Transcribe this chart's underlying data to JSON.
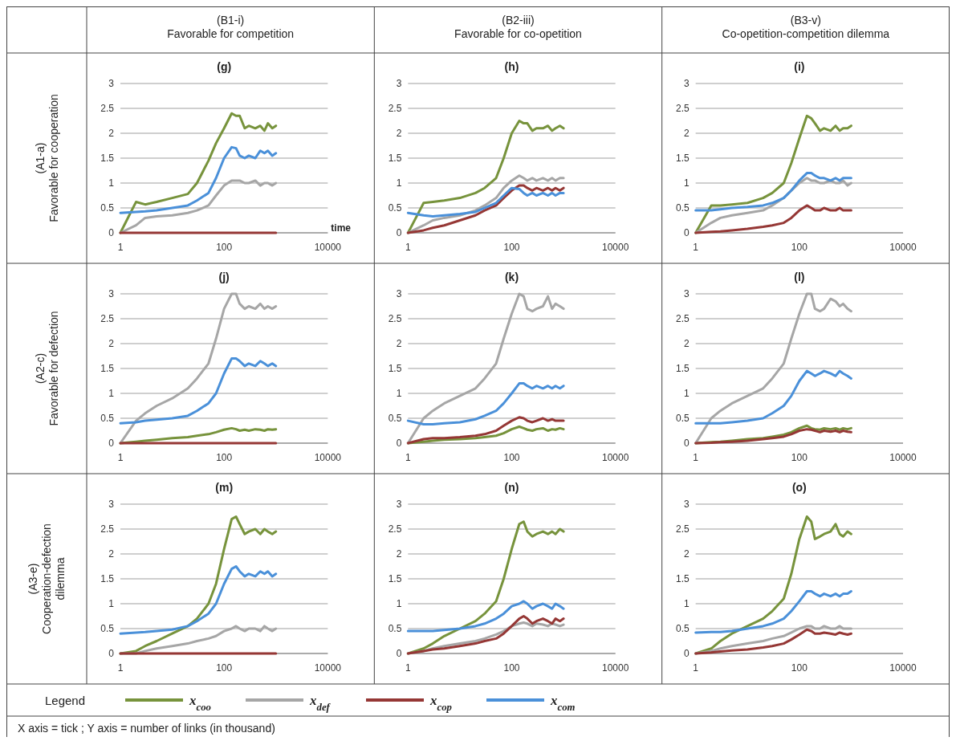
{
  "chart_data": [
    {
      "type": "line",
      "title": "(g)",
      "subtitle": "(B1-i)\nFavorable for competition",
      "ylabel": "(A1-a)\nFavorable for cooperation",
      "xlabel": "time",
      "legend": "bottom",
      "legend_title": "Legend",
      "annotations": [
        "X axis = tick ; Y axis = number of links (in thousand)"
      ],
      "log": "x",
      "grid": "y",
      "xlim": [
        1,
        10000
      ],
      "xticks": [
        1,
        100,
        10000
      ],
      "ylim": [
        0,
        3
      ],
      "yticks": [
        0,
        0.5,
        1,
        1.5,
        2,
        2.5,
        3
      ],
      "x": [
        1,
        2,
        3,
        5,
        10,
        20,
        30,
        50,
        70,
        100,
        140,
        170,
        200,
        250,
        300,
        400,
        500,
        600,
        700,
        850,
        1000
      ],
      "series": [
        {
          "name": "x$_{coo}$",
          "color": "#77933c",
          "values": [
            0,
            0.62,
            0.57,
            0.62,
            0.7,
            0.78,
            1.0,
            1.45,
            1.8,
            2.1,
            2.4,
            2.35,
            2.35,
            2.1,
            2.15,
            2.1,
            2.15,
            2.05,
            2.2,
            2.1,
            2.15
          ]
        },
        {
          "name": "x$_{def}$",
          "color": "#a6a6a6",
          "values": [
            0,
            0.15,
            0.3,
            0.33,
            0.35,
            0.4,
            0.45,
            0.55,
            0.75,
            0.95,
            1.05,
            1.05,
            1.05,
            1.0,
            1.0,
            1.05,
            0.95,
            1.0,
            1.0,
            0.95,
            1.0
          ]
        },
        {
          "name": "x$_{cop}$",
          "color": "#953735",
          "values": [
            0,
            0,
            0,
            0,
            0,
            0,
            0,
            0,
            0,
            0,
            0,
            0,
            0,
            0,
            0,
            0,
            0,
            0,
            0,
            0,
            0
          ]
        },
        {
          "name": "x$_{com}$",
          "color": "#4a90d9",
          "values": [
            0.4,
            0.42,
            0.43,
            0.45,
            0.5,
            0.55,
            0.65,
            0.8,
            1.1,
            1.5,
            1.72,
            1.7,
            1.55,
            1.5,
            1.55,
            1.5,
            1.65,
            1.6,
            1.65,
            1.55,
            1.6
          ]
        }
      ]
    },
    {
      "type": "line",
      "title": "(h)",
      "subtitle": "(B2-iii)\nFavorable for co-opetition",
      "log": "x",
      "grid": "y",
      "xlim": [
        1,
        10000
      ],
      "xticks": [
        1,
        100,
        10000
      ],
      "ylim": [
        0,
        3
      ],
      "yticks": [
        0,
        0.5,
        1,
        1.5,
        2,
        2.5,
        3
      ],
      "x": [
        1,
        2,
        3,
        5,
        10,
        20,
        30,
        50,
        70,
        100,
        140,
        170,
        200,
        250,
        300,
        400,
        500,
        600,
        700,
        850,
        1000
      ],
      "series": [
        {
          "color": "#77933c",
          "values": [
            0,
            0.6,
            0.62,
            0.65,
            0.7,
            0.8,
            0.9,
            1.1,
            1.5,
            2.0,
            2.25,
            2.2,
            2.2,
            2.05,
            2.1,
            2.1,
            2.15,
            2.05,
            2.1,
            2.15,
            2.1
          ]
        },
        {
          "color": "#a6a6a6",
          "values": [
            0,
            0.15,
            0.25,
            0.3,
            0.35,
            0.45,
            0.55,
            0.7,
            0.9,
            1.05,
            1.15,
            1.1,
            1.05,
            1.1,
            1.05,
            1.1,
            1.05,
            1.1,
            1.05,
            1.1,
            1.1
          ]
        },
        {
          "color": "#953735",
          "values": [
            0,
            0.05,
            0.1,
            0.15,
            0.25,
            0.35,
            0.45,
            0.55,
            0.7,
            0.85,
            0.95,
            0.95,
            0.9,
            0.85,
            0.9,
            0.85,
            0.9,
            0.85,
            0.9,
            0.85,
            0.9
          ]
        },
        {
          "color": "#4a90d9",
          "values": [
            0.4,
            0.35,
            0.33,
            0.35,
            0.38,
            0.42,
            0.5,
            0.6,
            0.75,
            0.9,
            0.88,
            0.8,
            0.75,
            0.8,
            0.75,
            0.8,
            0.75,
            0.8,
            0.75,
            0.8,
            0.8
          ]
        }
      ]
    },
    {
      "type": "line",
      "title": "(i)",
      "subtitle": "(B3-v)\nCo-opetition-competition dilemma",
      "log": "x",
      "grid": "y",
      "xlim": [
        1,
        10000
      ],
      "xticks": [
        1,
        100,
        10000
      ],
      "ylim": [
        0,
        3
      ],
      "yticks": [
        0,
        0.5,
        1,
        1.5,
        2,
        2.5,
        3
      ],
      "x": [
        1,
        2,
        3,
        5,
        10,
        20,
        30,
        50,
        70,
        100,
        140,
        170,
        200,
        250,
        300,
        400,
        500,
        600,
        700,
        850,
        1000
      ],
      "series": [
        {
          "color": "#77933c",
          "values": [
            0,
            0.55,
            0.55,
            0.57,
            0.6,
            0.7,
            0.8,
            1.0,
            1.4,
            1.9,
            2.35,
            2.3,
            2.2,
            2.05,
            2.1,
            2.05,
            2.15,
            2.05,
            2.1,
            2.1,
            2.15
          ]
        },
        {
          "color": "#a6a6a6",
          "values": [
            0,
            0.2,
            0.3,
            0.35,
            0.4,
            0.45,
            0.55,
            0.7,
            0.85,
            1.0,
            1.1,
            1.05,
            1.05,
            1.0,
            1.0,
            1.05,
            1.0,
            1.0,
            1.05,
            0.95,
            1.0
          ]
        },
        {
          "color": "#953735",
          "values": [
            0,
            0.02,
            0.03,
            0.05,
            0.08,
            0.12,
            0.15,
            0.2,
            0.3,
            0.45,
            0.55,
            0.5,
            0.45,
            0.45,
            0.5,
            0.45,
            0.45,
            0.5,
            0.45,
            0.45,
            0.45
          ]
        },
        {
          "color": "#4a90d9",
          "values": [
            0.45,
            0.45,
            0.47,
            0.5,
            0.52,
            0.55,
            0.6,
            0.7,
            0.85,
            1.05,
            1.2,
            1.2,
            1.15,
            1.1,
            1.1,
            1.05,
            1.1,
            1.05,
            1.1,
            1.1,
            1.1
          ]
        }
      ]
    },
    {
      "type": "line",
      "title": "(j)",
      "ylabel": "(A2-c)\nFavorable for defection",
      "log": "x",
      "grid": "y",
      "xlim": [
        1,
        10000
      ],
      "xticks": [
        1,
        100,
        10000
      ],
      "ylim": [
        0,
        3
      ],
      "yticks": [
        0,
        0.5,
        1,
        1.5,
        2,
        2.5,
        3
      ],
      "x": [
        1,
        2,
        3,
        5,
        10,
        20,
        30,
        50,
        70,
        100,
        140,
        170,
        200,
        250,
        300,
        400,
        500,
        600,
        700,
        850,
        1000
      ],
      "series": [
        {
          "color": "#77933c",
          "values": [
            0,
            0.03,
            0.05,
            0.07,
            0.1,
            0.12,
            0.15,
            0.18,
            0.22,
            0.27,
            0.3,
            0.28,
            0.25,
            0.27,
            0.25,
            0.28,
            0.27,
            0.25,
            0.28,
            0.27,
            0.28
          ]
        },
        {
          "color": "#a6a6a6",
          "values": [
            0,
            0.45,
            0.6,
            0.75,
            0.9,
            1.1,
            1.3,
            1.6,
            2.1,
            2.7,
            3.0,
            3.0,
            2.8,
            2.7,
            2.75,
            2.7,
            2.8,
            2.7,
            2.75,
            2.7,
            2.75
          ]
        },
        {
          "color": "#953735",
          "values": [
            0,
            0,
            0,
            0,
            0,
            0,
            0,
            0,
            0,
            0,
            0,
            0,
            0,
            0,
            0,
            0,
            0,
            0,
            0,
            0,
            0
          ]
        },
        {
          "color": "#4a90d9",
          "values": [
            0.4,
            0.42,
            0.45,
            0.47,
            0.5,
            0.55,
            0.65,
            0.8,
            1.0,
            1.4,
            1.7,
            1.7,
            1.65,
            1.55,
            1.6,
            1.55,
            1.65,
            1.6,
            1.55,
            1.6,
            1.55
          ]
        }
      ]
    },
    {
      "type": "line",
      "title": "(k)",
      "log": "x",
      "grid": "y",
      "xlim": [
        1,
        10000
      ],
      "xticks": [
        1,
        100,
        10000
      ],
      "ylim": [
        0,
        3
      ],
      "yticks": [
        0,
        0.5,
        1,
        1.5,
        2,
        2.5,
        3
      ],
      "x": [
        1,
        2,
        3,
        5,
        10,
        20,
        30,
        50,
        70,
        100,
        140,
        170,
        200,
        250,
        300,
        400,
        500,
        600,
        700,
        850,
        1000
      ],
      "series": [
        {
          "color": "#77933c",
          "values": [
            0,
            0.03,
            0.05,
            0.07,
            0.08,
            0.1,
            0.12,
            0.15,
            0.2,
            0.28,
            0.33,
            0.3,
            0.27,
            0.25,
            0.28,
            0.3,
            0.25,
            0.28,
            0.27,
            0.3,
            0.28
          ]
        },
        {
          "color": "#a6a6a6",
          "values": [
            0,
            0.5,
            0.65,
            0.8,
            0.95,
            1.1,
            1.3,
            1.6,
            2.1,
            2.6,
            3.0,
            2.95,
            2.7,
            2.65,
            2.7,
            2.75,
            2.95,
            2.7,
            2.8,
            2.75,
            2.7
          ]
        },
        {
          "color": "#953735",
          "values": [
            0,
            0.08,
            0.1,
            0.1,
            0.12,
            0.15,
            0.18,
            0.25,
            0.35,
            0.45,
            0.52,
            0.5,
            0.45,
            0.42,
            0.45,
            0.5,
            0.45,
            0.48,
            0.45,
            0.45,
            0.45
          ]
        },
        {
          "color": "#4a90d9",
          "values": [
            0.45,
            0.38,
            0.38,
            0.4,
            0.42,
            0.48,
            0.55,
            0.65,
            0.8,
            1.0,
            1.2,
            1.2,
            1.15,
            1.1,
            1.15,
            1.1,
            1.15,
            1.1,
            1.15,
            1.1,
            1.15
          ]
        }
      ]
    },
    {
      "type": "line",
      "title": "(l)",
      "log": "x",
      "grid": "y",
      "xlim": [
        1,
        10000
      ],
      "xticks": [
        1,
        100,
        10000
      ],
      "ylim": [
        0,
        3
      ],
      "yticks": [
        0,
        0.5,
        1,
        1.5,
        2,
        2.5,
        3
      ],
      "x": [
        1,
        2,
        3,
        5,
        10,
        20,
        30,
        50,
        70,
        100,
        140,
        170,
        200,
        250,
        300,
        400,
        500,
        600,
        700,
        850,
        1000
      ],
      "series": [
        {
          "color": "#77933c",
          "values": [
            0,
            0.02,
            0.03,
            0.05,
            0.08,
            0.1,
            0.13,
            0.17,
            0.22,
            0.3,
            0.35,
            0.3,
            0.28,
            0.27,
            0.3,
            0.28,
            0.3,
            0.27,
            0.3,
            0.28,
            0.3
          ]
        },
        {
          "color": "#a6a6a6",
          "values": [
            0,
            0.5,
            0.65,
            0.8,
            0.95,
            1.1,
            1.3,
            1.6,
            2.1,
            2.6,
            3.0,
            3.0,
            2.7,
            2.65,
            2.7,
            2.9,
            2.85,
            2.75,
            2.8,
            2.7,
            2.65
          ]
        },
        {
          "color": "#953735",
          "values": [
            0,
            0.01,
            0.02,
            0.03,
            0.05,
            0.08,
            0.1,
            0.13,
            0.18,
            0.25,
            0.28,
            0.27,
            0.25,
            0.22,
            0.25,
            0.23,
            0.25,
            0.22,
            0.25,
            0.23,
            0.22
          ]
        },
        {
          "color": "#4a90d9",
          "values": [
            0.4,
            0.4,
            0.4,
            0.42,
            0.45,
            0.5,
            0.6,
            0.75,
            0.95,
            1.25,
            1.45,
            1.4,
            1.35,
            1.4,
            1.45,
            1.4,
            1.35,
            1.45,
            1.4,
            1.35,
            1.3
          ]
        }
      ]
    },
    {
      "type": "line",
      "title": "(m)",
      "ylabel": "(A3-e)\nCooperation-defection\ndilemma",
      "log": "x",
      "grid": "y",
      "xlim": [
        1,
        10000
      ],
      "xticks": [
        1,
        100,
        10000
      ],
      "ylim": [
        0,
        3
      ],
      "yticks": [
        0,
        0.5,
        1,
        1.5,
        2,
        2.5,
        3
      ],
      "x": [
        1,
        2,
        3,
        5,
        10,
        20,
        30,
        50,
        70,
        100,
        140,
        170,
        200,
        250,
        300,
        400,
        500,
        600,
        700,
        850,
        1000
      ],
      "series": [
        {
          "color": "#77933c",
          "values": [
            0,
            0.05,
            0.15,
            0.25,
            0.4,
            0.55,
            0.7,
            1.0,
            1.4,
            2.1,
            2.7,
            2.75,
            2.6,
            2.4,
            2.45,
            2.5,
            2.4,
            2.5,
            2.45,
            2.4,
            2.45
          ]
        },
        {
          "color": "#a6a6a6",
          "values": [
            0,
            0,
            0.05,
            0.1,
            0.15,
            0.2,
            0.25,
            0.3,
            0.35,
            0.45,
            0.5,
            0.55,
            0.5,
            0.45,
            0.5,
            0.5,
            0.45,
            0.55,
            0.5,
            0.45,
            0.5
          ]
        },
        {
          "color": "#953735",
          "values": [
            0,
            0,
            0,
            0,
            0,
            0,
            0,
            0,
            0,
            0,
            0,
            0,
            0,
            0,
            0,
            0,
            0,
            0,
            0,
            0,
            0
          ]
        },
        {
          "color": "#4a90d9",
          "values": [
            0.4,
            0.42,
            0.43,
            0.45,
            0.48,
            0.55,
            0.65,
            0.8,
            1.0,
            1.4,
            1.7,
            1.75,
            1.65,
            1.55,
            1.6,
            1.55,
            1.65,
            1.6,
            1.65,
            1.55,
            1.6
          ]
        }
      ]
    },
    {
      "type": "line",
      "title": "(n)",
      "log": "x",
      "grid": "y",
      "xlim": [
        1,
        10000
      ],
      "xticks": [
        1,
        100,
        10000
      ],
      "ylim": [
        0,
        3
      ],
      "yticks": [
        0,
        0.5,
        1,
        1.5,
        2,
        2.5,
        3
      ],
      "x": [
        1,
        2,
        3,
        5,
        10,
        20,
        30,
        50,
        70,
        100,
        140,
        170,
        200,
        250,
        300,
        400,
        500,
        600,
        700,
        850,
        1000
      ],
      "series": [
        {
          "color": "#77933c",
          "values": [
            0,
            0.1,
            0.2,
            0.35,
            0.5,
            0.65,
            0.8,
            1.05,
            1.5,
            2.1,
            2.6,
            2.65,
            2.45,
            2.35,
            2.4,
            2.45,
            2.4,
            2.45,
            2.4,
            2.5,
            2.45
          ]
        },
        {
          "color": "#a6a6a6",
          "values": [
            0,
            0.05,
            0.1,
            0.15,
            0.2,
            0.25,
            0.3,
            0.38,
            0.45,
            0.55,
            0.6,
            0.62,
            0.6,
            0.55,
            0.6,
            0.58,
            0.55,
            0.6,
            0.58,
            0.55,
            0.58
          ]
        },
        {
          "color": "#953735",
          "values": [
            0,
            0.05,
            0.08,
            0.1,
            0.15,
            0.2,
            0.25,
            0.3,
            0.4,
            0.55,
            0.7,
            0.75,
            0.7,
            0.6,
            0.65,
            0.7,
            0.65,
            0.6,
            0.7,
            0.65,
            0.7
          ]
        },
        {
          "color": "#4a90d9",
          "values": [
            0.45,
            0.45,
            0.45,
            0.47,
            0.5,
            0.55,
            0.6,
            0.7,
            0.8,
            0.95,
            1.0,
            1.05,
            1.0,
            0.9,
            0.95,
            1.0,
            0.95,
            0.9,
            1.0,
            0.95,
            0.9
          ]
        }
      ]
    },
    {
      "type": "line",
      "title": "(o)",
      "log": "x",
      "grid": "y",
      "xlim": [
        1,
        10000
      ],
      "xticks": [
        1,
        100,
        10000
      ],
      "ylim": [
        0,
        3
      ],
      "yticks": [
        0,
        0.5,
        1,
        1.5,
        2,
        2.5,
        3
      ],
      "x": [
        1,
        2,
        3,
        5,
        10,
        20,
        30,
        50,
        70,
        100,
        140,
        170,
        200,
        250,
        300,
        400,
        500,
        600,
        700,
        850,
        1000
      ],
      "series": [
        {
          "color": "#77933c",
          "values": [
            0,
            0.1,
            0.25,
            0.4,
            0.55,
            0.7,
            0.85,
            1.1,
            1.6,
            2.3,
            2.75,
            2.65,
            2.3,
            2.35,
            2.4,
            2.45,
            2.6,
            2.4,
            2.35,
            2.45,
            2.4
          ]
        },
        {
          "color": "#a6a6a6",
          "values": [
            0,
            0.05,
            0.1,
            0.15,
            0.2,
            0.25,
            0.3,
            0.35,
            0.42,
            0.5,
            0.55,
            0.55,
            0.5,
            0.5,
            0.55,
            0.5,
            0.5,
            0.55,
            0.5,
            0.5,
            0.5
          ]
        },
        {
          "color": "#953735",
          "values": [
            0,
            0.02,
            0.04,
            0.06,
            0.08,
            0.12,
            0.15,
            0.2,
            0.28,
            0.38,
            0.48,
            0.45,
            0.4,
            0.4,
            0.42,
            0.4,
            0.38,
            0.42,
            0.4,
            0.38,
            0.4
          ]
        },
        {
          "color": "#4a90d9",
          "values": [
            0.42,
            0.43,
            0.43,
            0.45,
            0.5,
            0.55,
            0.6,
            0.7,
            0.85,
            1.05,
            1.25,
            1.25,
            1.2,
            1.15,
            1.2,
            1.15,
            1.2,
            1.15,
            1.2,
            1.2,
            1.25
          ]
        }
      ]
    }
  ]
}
